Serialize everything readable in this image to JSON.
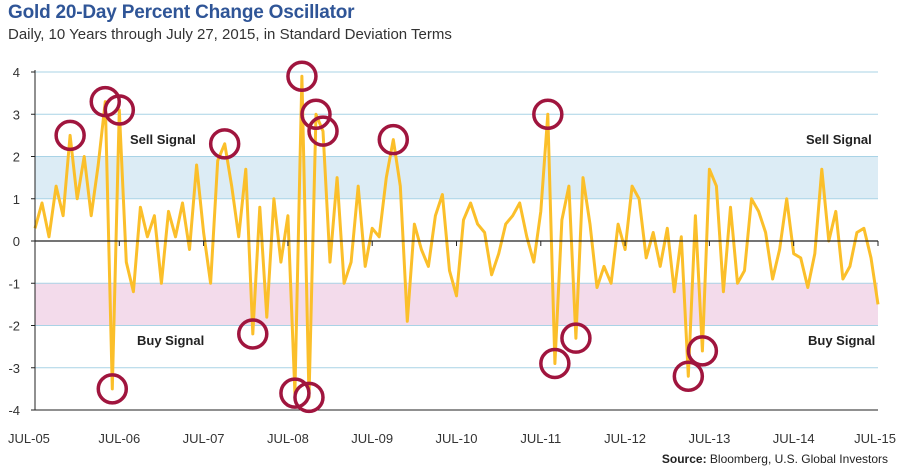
{
  "title": "Gold 20-Day Percent Change Oscillator",
  "subtitle": "Daily, 10 Years through July 27, 2015, in Standard Deviation Terms",
  "source_label": "Source:",
  "source_text": " Bloomberg, U.S. Global Investors",
  "sell_signal_label": "Sell Signal",
  "buy_signal_label": "Buy Signal",
  "colors": {
    "line": "#fbbf2a",
    "circle": "#a0153e",
    "sell_band": "#dcecf5",
    "buy_band": "#f3dbeb",
    "grid": "#a9d3e6",
    "axis": "#222222"
  },
  "chart_data": {
    "type": "line",
    "title": "Gold 20-Day Percent Change Oscillator",
    "subtitle": "Daily, 10 Years through July 27, 2015, in Standard Deviation Terms",
    "xlabel": "",
    "ylabel": "",
    "ylim": [
      -4,
      4
    ],
    "xlim": [
      "2005-07",
      "2015-07"
    ],
    "y_ticks": [
      "4",
      "3",
      "2",
      "1",
      "0",
      "-1",
      "-2",
      "-3",
      "-4"
    ],
    "x_ticks": [
      "JUL-05",
      "JUL-06",
      "JUL-07",
      "JUL-08",
      "JUL-09",
      "JUL-10",
      "JUL-11",
      "JUL-12",
      "JUL-13",
      "JUL-14",
      "JUL-15"
    ],
    "bands": [
      {
        "name": "Sell Signal",
        "from": 1,
        "to": 2
      },
      {
        "name": "Buy Signal",
        "from": -2,
        "to": -1
      }
    ],
    "series": [
      {
        "points": [
          [
            "2005-07",
            0.3
          ],
          [
            "2005-08",
            0.9
          ],
          [
            "2005-09",
            0.1
          ],
          [
            "2005-10",
            1.3
          ],
          [
            "2005-11",
            0.6
          ],
          [
            "2005-12",
            2.5
          ],
          [
            "2006-01",
            1.0
          ],
          [
            "2006-02",
            2.0
          ],
          [
            "2006-03",
            0.6
          ],
          [
            "2006-04",
            1.8
          ],
          [
            "2006-05",
            3.3
          ],
          [
            "2006-06",
            -3.5
          ],
          [
            "2006-07",
            3.1
          ],
          [
            "2006-08",
            -0.5
          ],
          [
            "2006-09",
            -1.2
          ],
          [
            "2006-10",
            0.8
          ],
          [
            "2006-11",
            0.1
          ],
          [
            "2006-12",
            0.6
          ],
          [
            "2007-01",
            -1.0
          ],
          [
            "2007-02",
            0.7
          ],
          [
            "2007-03",
            0.1
          ],
          [
            "2007-04",
            0.9
          ],
          [
            "2007-05",
            -0.2
          ],
          [
            "2007-06",
            1.8
          ],
          [
            "2007-07",
            0.2
          ],
          [
            "2007-08",
            -1.0
          ],
          [
            "2007-09",
            1.9
          ],
          [
            "2007-10",
            2.3
          ],
          [
            "2007-11",
            1.3
          ],
          [
            "2007-12",
            0.1
          ],
          [
            "2008-01",
            1.7
          ],
          [
            "2008-02",
            -2.2
          ],
          [
            "2008-03",
            0.8
          ],
          [
            "2008-04",
            -1.8
          ],
          [
            "2008-05",
            1.0
          ],
          [
            "2008-06",
            -0.5
          ],
          [
            "2008-07",
            0.6
          ],
          [
            "2008-08",
            -3.6
          ],
          [
            "2008-09",
            3.9
          ],
          [
            "2008-10",
            -3.7
          ],
          [
            "2008-11",
            3.0
          ],
          [
            "2008-12",
            2.6
          ],
          [
            "2009-01",
            -0.5
          ],
          [
            "2009-02",
            1.5
          ],
          [
            "2009-03",
            -1.0
          ],
          [
            "2009-04",
            -0.5
          ],
          [
            "2009-05",
            1.3
          ],
          [
            "2009-06",
            -0.6
          ],
          [
            "2009-07",
            0.3
          ],
          [
            "2009-08",
            0.1
          ],
          [
            "2009-09",
            1.5
          ],
          [
            "2009-10",
            2.4
          ],
          [
            "2009-11",
            1.3
          ],
          [
            "2009-12",
            -1.9
          ],
          [
            "2010-01",
            0.4
          ],
          [
            "2010-02",
            -0.2
          ],
          [
            "2010-03",
            -0.6
          ],
          [
            "2010-04",
            0.6
          ],
          [
            "2010-05",
            1.1
          ],
          [
            "2010-06",
            -0.7
          ],
          [
            "2010-07",
            -1.3
          ],
          [
            "2010-08",
            0.5
          ],
          [
            "2010-09",
            0.9
          ],
          [
            "2010-10",
            0.4
          ],
          [
            "2010-11",
            0.2
          ],
          [
            "2010-12",
            -0.8
          ],
          [
            "2011-01",
            -0.3
          ],
          [
            "2011-02",
            0.4
          ],
          [
            "2011-03",
            0.6
          ],
          [
            "2011-04",
            0.9
          ],
          [
            "2011-05",
            0.1
          ],
          [
            "2011-06",
            -0.5
          ],
          [
            "2011-07",
            0.7
          ],
          [
            "2011-08",
            3.0
          ],
          [
            "2011-09",
            -2.9
          ],
          [
            "2011-10",
            0.5
          ],
          [
            "2011-11",
            1.3
          ],
          [
            "2011-12",
            -2.3
          ],
          [
            "2012-01",
            1.5
          ],
          [
            "2012-02",
            0.4
          ],
          [
            "2012-03",
            -1.1
          ],
          [
            "2012-04",
            -0.6
          ],
          [
            "2012-05",
            -1.0
          ],
          [
            "2012-06",
            0.4
          ],
          [
            "2012-07",
            -0.2
          ],
          [
            "2012-08",
            1.3
          ],
          [
            "2012-09",
            1.0
          ],
          [
            "2012-10",
            -0.4
          ],
          [
            "2012-11",
            0.2
          ],
          [
            "2012-12",
            -0.6
          ],
          [
            "2013-01",
            0.3
          ],
          [
            "2013-02",
            -1.2
          ],
          [
            "2013-03",
            0.1
          ],
          [
            "2013-04",
            -3.2
          ],
          [
            "2013-05",
            0.6
          ],
          [
            "2013-06",
            -2.6
          ],
          [
            "2013-07",
            1.7
          ],
          [
            "2013-08",
            1.3
          ],
          [
            "2013-09",
            -1.2
          ],
          [
            "2013-10",
            0.8
          ],
          [
            "2013-11",
            -1.0
          ],
          [
            "2013-12",
            -0.7
          ],
          [
            "2014-01",
            1.0
          ],
          [
            "2014-02",
            0.7
          ],
          [
            "2014-03",
            0.2
          ],
          [
            "2014-04",
            -0.9
          ],
          [
            "2014-05",
            -0.2
          ],
          [
            "2014-06",
            1.0
          ],
          [
            "2014-07",
            -0.3
          ],
          [
            "2014-08",
            -0.4
          ],
          [
            "2014-09",
            -1.1
          ],
          [
            "2014-10",
            -0.3
          ],
          [
            "2014-11",
            1.7
          ],
          [
            "2014-12",
            0.0
          ],
          [
            "2015-01",
            0.7
          ],
          [
            "2015-02",
            -0.9
          ],
          [
            "2015-03",
            -0.6
          ],
          [
            "2015-04",
            0.2
          ],
          [
            "2015-05",
            0.3
          ],
          [
            "2015-06",
            -0.4
          ],
          [
            "2015-07",
            -1.5
          ]
        ]
      }
    ],
    "highlighted_points": [
      [
        "2005-12",
        2.5
      ],
      [
        "2006-05",
        3.3
      ],
      [
        "2006-06",
        -3.5
      ],
      [
        "2006-07",
        3.1
      ],
      [
        "2007-10",
        2.3
      ],
      [
        "2008-02",
        -2.2
      ],
      [
        "2008-08",
        -3.6
      ],
      [
        "2008-09",
        3.9
      ],
      [
        "2008-10",
        -3.7
      ],
      [
        "2008-11",
        3.0
      ],
      [
        "2008-12",
        2.6
      ],
      [
        "2009-10",
        2.4
      ],
      [
        "2011-08",
        3.0
      ],
      [
        "2011-09",
        -2.9
      ],
      [
        "2011-12",
        -2.3
      ],
      [
        "2013-04",
        -3.2
      ],
      [
        "2013-06",
        -2.6
      ]
    ]
  }
}
